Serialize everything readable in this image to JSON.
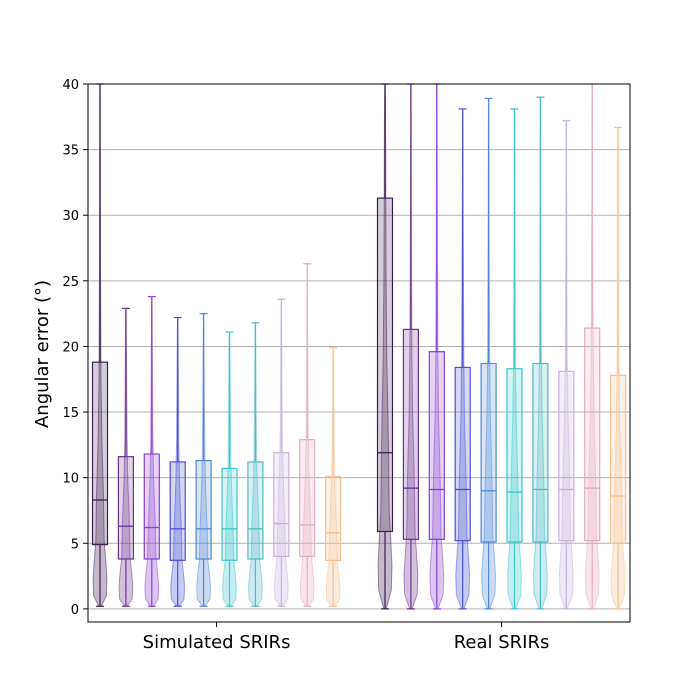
{
  "chart_data": {
    "type": "box-violin",
    "ylabel": "Angular error (°)",
    "xlabel": "",
    "ylim": [
      -1,
      40
    ],
    "yticks": [
      0,
      5,
      10,
      15,
      20,
      25,
      30,
      35,
      40
    ],
    "grid": "horizontal",
    "groups": [
      {
        "name": "Simulated SRIRs",
        "boxes": [
          {
            "color": "#3b1e4f",
            "q1": 4.9,
            "median": 8.3,
            "q3": 18.8,
            "whislo": 0.2,
            "whishi": 40
          },
          {
            "color": "#6a3290",
            "q1": 3.8,
            "median": 6.3,
            "q3": 11.6,
            "whislo": 0.2,
            "whishi": 22.9
          },
          {
            "color": "#8a3fcf",
            "q1": 3.8,
            "median": 6.2,
            "q3": 11.8,
            "whislo": 0.2,
            "whishi": 23.8
          },
          {
            "color": "#4a4fd1",
            "q1": 3.7,
            "median": 6.1,
            "q3": 11.2,
            "whislo": 0.2,
            "whishi": 22.2
          },
          {
            "color": "#4f87d6",
            "q1": 3.8,
            "median": 6.1,
            "q3": 11.3,
            "whislo": 0.2,
            "whishi": 22.5
          },
          {
            "color": "#3bc7c9",
            "q1": 3.7,
            "median": 6.1,
            "q3": 10.7,
            "whislo": 0.2,
            "whishi": 21.1
          },
          {
            "color": "#52b9c6",
            "q1": 3.8,
            "median": 6.1,
            "q3": 11.2,
            "whislo": 0.2,
            "whishi": 21.8
          },
          {
            "color": "#c7b2db",
            "q1": 4.0,
            "median": 6.5,
            "q3": 11.9,
            "whislo": 0.2,
            "whishi": 23.6
          },
          {
            "color": "#e7aac0",
            "q1": 4.0,
            "median": 6.4,
            "q3": 12.9,
            "whislo": 0.2,
            "whishi": 26.3
          },
          {
            "color": "#f7c08f",
            "q1": 3.7,
            "median": 5.8,
            "q3": 10.1,
            "whislo": 0.2,
            "whishi": 19.9
          }
        ]
      },
      {
        "name": "Real SRIRs",
        "boxes": [
          {
            "color": "#3b1e4f",
            "q1": 5.9,
            "median": 11.9,
            "q3": 31.3,
            "whislo": 0,
            "whishi": 40
          },
          {
            "color": "#6a3290",
            "q1": 5.3,
            "median": 9.2,
            "q3": 21.3,
            "whislo": 0,
            "whishi": 40
          },
          {
            "color": "#8a3fcf",
            "q1": 5.3,
            "median": 9.1,
            "q3": 19.6,
            "whislo": 0,
            "whishi": 40
          },
          {
            "color": "#4a4fd1",
            "q1": 5.2,
            "median": 9.1,
            "q3": 18.4,
            "whislo": 0,
            "whishi": 38.1
          },
          {
            "color": "#4f87d6",
            "q1": 5.1,
            "median": 9.0,
            "q3": 18.7,
            "whislo": 0,
            "whishi": 38.9
          },
          {
            "color": "#3bc7c9",
            "q1": 5.1,
            "median": 8.9,
            "q3": 18.3,
            "whislo": 0,
            "whishi": 38.1
          },
          {
            "color": "#52b9c6",
            "q1": 5.1,
            "median": 9.1,
            "q3": 18.7,
            "whislo": 0,
            "whishi": 39.0
          },
          {
            "color": "#c7b2db",
            "q1": 5.2,
            "median": 9.1,
            "q3": 18.1,
            "whislo": 0,
            "whishi": 37.2
          },
          {
            "color": "#e7aac0",
            "q1": 5.2,
            "median": 9.2,
            "q3": 21.4,
            "whislo": 0,
            "whishi": 40
          },
          {
            "color": "#f7c08f",
            "q1": 5.0,
            "median": 8.6,
            "q3": 17.8,
            "whislo": 0,
            "whishi": 36.7
          }
        ]
      }
    ]
  }
}
